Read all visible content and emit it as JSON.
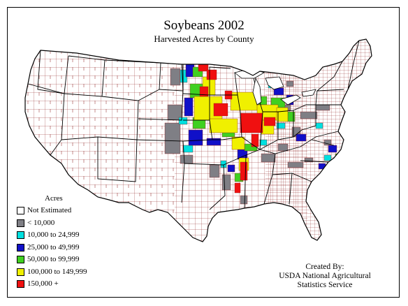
{
  "map": {
    "title": "Soybeans 2002",
    "subtitle": "Harvested Acres by County",
    "legend": {
      "title": "Acres",
      "items": [
        {
          "label": "Not Estimated",
          "color": "#ffffff"
        },
        {
          "label": "< 10,000",
          "color": "#7f7f85"
        },
        {
          "label": "10,000 to 24,999",
          "color": "#00e0e0"
        },
        {
          "label": "25,000 to 49,999",
          "color": "#1010c8"
        },
        {
          "label": "50,000 to 99,999",
          "color": "#40d020"
        },
        {
          "label": "100,000 to 149,999",
          "color": "#f0f000"
        },
        {
          "label": "150,000 +",
          "color": "#f01010"
        }
      ]
    },
    "credit": {
      "line1": "Created By:",
      "line2": "USDA National Agricultural",
      "line3": "Statistics Service"
    },
    "county_border_color": "#8b1a1a"
  }
}
